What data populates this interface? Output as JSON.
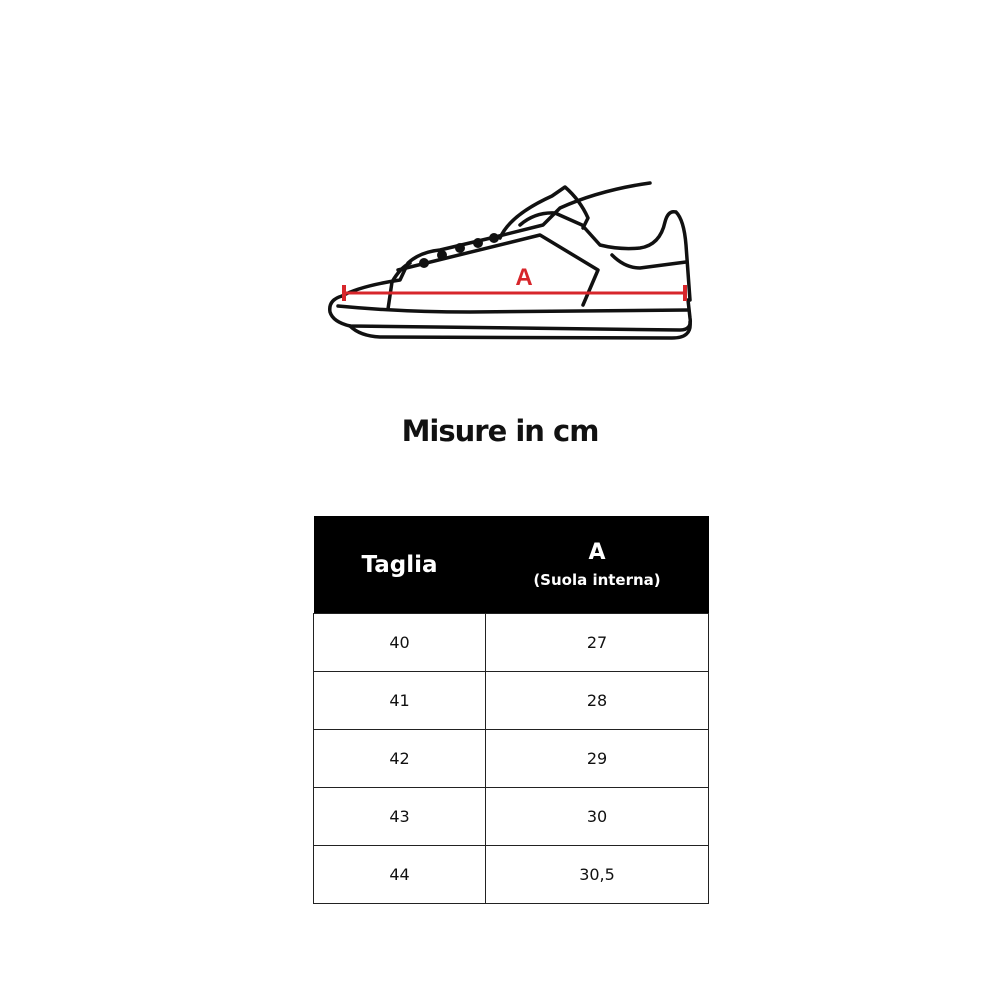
{
  "diagram": {
    "measure_label": "A",
    "measure_color": "#d7262b"
  },
  "title": "Misure in cm",
  "table": {
    "headers": {
      "size": "Taglia",
      "a_label": "A",
      "a_sub": "(Suola interna)"
    },
    "rows": [
      {
        "size": "40",
        "a": "27"
      },
      {
        "size": "41",
        "a": "28"
      },
      {
        "size": "42",
        "a": "29"
      },
      {
        "size": "43",
        "a": "30"
      },
      {
        "size": "44",
        "a": "30,5"
      }
    ]
  }
}
